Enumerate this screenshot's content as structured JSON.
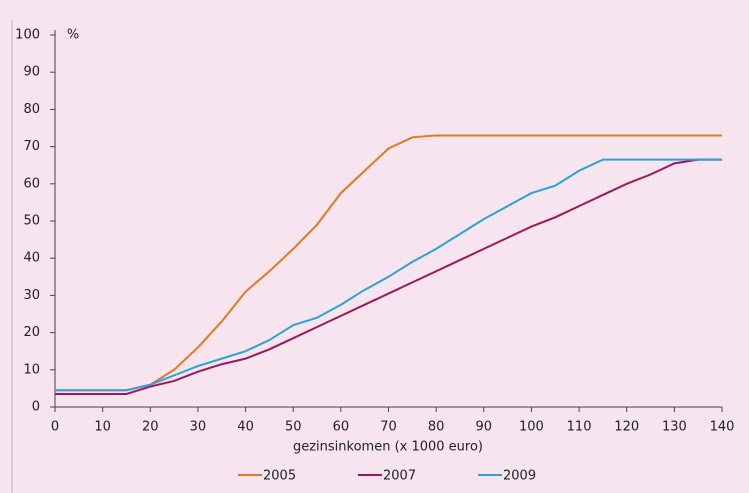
{
  "chart_data": {
    "type": "line",
    "y_label": "%",
    "x_label": "gezinsinkomen (x 1000 euro)",
    "x": [
      0,
      5,
      10,
      15,
      20,
      25,
      30,
      35,
      40,
      45,
      50,
      55,
      60,
      65,
      70,
      75,
      80,
      85,
      90,
      95,
      100,
      105,
      110,
      115,
      120,
      125,
      130,
      135,
      140
    ],
    "series": [
      {
        "name": "2005",
        "color": "#e8781e",
        "values": [
          4.5,
          4.5,
          4.5,
          4.5,
          6,
          10,
          16,
          23,
          31,
          36.5,
          42.5,
          49,
          57.5,
          63.5,
          69.5,
          72.5,
          73,
          73,
          73,
          73,
          73,
          73,
          73,
          73,
          73,
          73,
          73,
          73,
          73
        ]
      },
      {
        "name": "2007",
        "color": "#a0165a",
        "values": [
          3.5,
          3.5,
          3.5,
          3.5,
          5.5,
          7,
          9.5,
          11.5,
          13,
          15.5,
          18.5,
          21.5,
          24.5,
          27.5,
          30.5,
          33.5,
          36.5,
          39.5,
          42.5,
          45.5,
          48.5,
          51,
          54,
          57,
          60,
          62.5,
          65.5,
          66.5,
          66.5
        ]
      },
      {
        "name": "2009",
        "color": "#2aa3d6",
        "values": [
          4.5,
          4.5,
          4.5,
          4.5,
          6,
          8.5,
          11,
          13,
          15,
          18,
          22,
          24,
          27.5,
          31.5,
          35,
          39,
          42.5,
          46.5,
          50.5,
          54,
          57.5,
          59.5,
          63.5,
          66.5,
          66.5,
          66.5,
          66.5,
          66.5,
          66.5
        ]
      }
    ],
    "xlim": [
      0,
      140
    ],
    "xticks": [
      0,
      10,
      20,
      30,
      40,
      50,
      60,
      70,
      80,
      90,
      100,
      110,
      120,
      130,
      140
    ],
    "ylim": [
      0,
      100
    ],
    "yticks": [
      0,
      10,
      20,
      30,
      40,
      50,
      60,
      70,
      80,
      90,
      100
    ],
    "grid": false
  }
}
